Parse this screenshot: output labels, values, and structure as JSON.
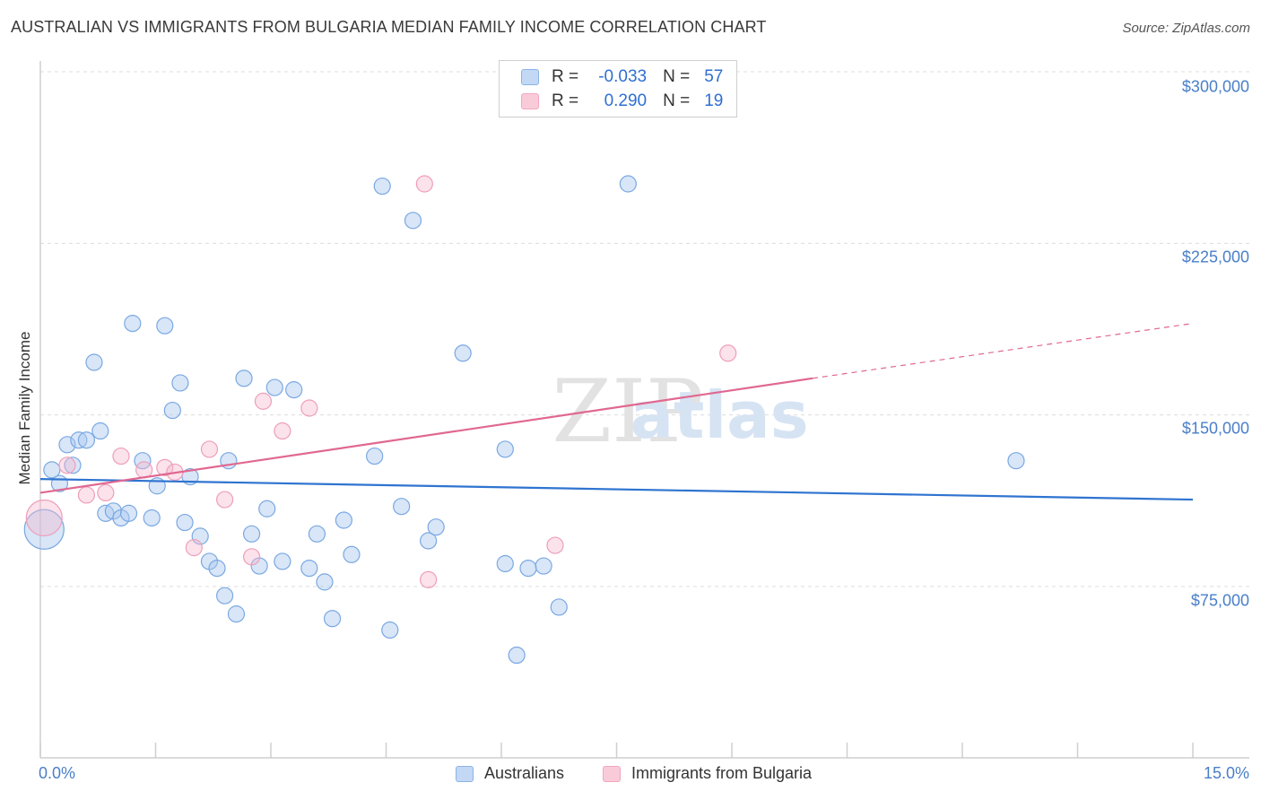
{
  "chart_data": {
    "type": "scatter",
    "title": "AUSTRALIAN VS IMMIGRANTS FROM BULGARIA MEDIAN FAMILY INCOME CORRELATION CHART",
    "source": "Source: ZipAtlas.com",
    "xlabel": "",
    "ylabel": "Median Family Income",
    "xlim": [
      0.0,
      15.0
    ],
    "ylim": [
      0,
      315000
    ],
    "x_tick_labels": [
      "0.0%",
      "15.0%"
    ],
    "y_ticks": [
      {
        "value": 75000,
        "label": "$75,000"
      },
      {
        "value": 150000,
        "label": "$150,000"
      },
      {
        "value": 225000,
        "label": "$225,000"
      },
      {
        "value": 300000,
        "label": "$300,000"
      }
    ],
    "grid": true,
    "legend": {
      "placement": "top-center",
      "r_label": "R =",
      "n_label": "N =",
      "entries": [
        {
          "name": "Australians",
          "r": "-0.033",
          "n": "57"
        },
        {
          "name": "Immigrants from Bulgaria",
          "r": "0.290",
          "n": "19"
        }
      ]
    },
    "series": [
      {
        "name": "Australians",
        "color": "#8ab4e8",
        "line_color": "#2f74d0",
        "trend": {
          "x": [
            0.0,
            15.0
          ],
          "y": [
            122000,
            113000
          ],
          "dashed_after": null
        },
        "points": [
          [
            0.15,
            126000
          ],
          [
            0.25,
            120000
          ],
          [
            0.35,
            137000
          ],
          [
            0.42,
            128000
          ],
          [
            0.5,
            139000
          ],
          [
            0.6,
            139000
          ],
          [
            0.7,
            173000
          ],
          [
            0.78,
            143000
          ],
          [
            0.85,
            107000
          ],
          [
            0.95,
            108000
          ],
          [
            1.05,
            105000
          ],
          [
            1.15,
            107000
          ],
          [
            1.2,
            190000
          ],
          [
            1.33,
            130000
          ],
          [
            1.45,
            105000
          ],
          [
            1.52,
            119000
          ],
          [
            1.62,
            189000
          ],
          [
            1.72,
            152000
          ],
          [
            1.82,
            164000
          ],
          [
            1.88,
            103000
          ],
          [
            1.95,
            123000
          ],
          [
            2.08,
            97000
          ],
          [
            2.2,
            86000
          ],
          [
            2.3,
            83000
          ],
          [
            2.4,
            71000
          ],
          [
            2.45,
            130000
          ],
          [
            2.55,
            63000
          ],
          [
            2.65,
            166000
          ],
          [
            2.75,
            98000
          ],
          [
            2.85,
            84000
          ],
          [
            2.95,
            109000
          ],
          [
            3.05,
            162000
          ],
          [
            3.15,
            86000
          ],
          [
            3.3,
            161000
          ],
          [
            3.5,
            83000
          ],
          [
            3.6,
            98000
          ],
          [
            3.7,
            77000
          ],
          [
            3.8,
            61000
          ],
          [
            3.95,
            104000
          ],
          [
            4.05,
            89000
          ],
          [
            4.35,
            132000
          ],
          [
            4.45,
            250000
          ],
          [
            4.55,
            56000
          ],
          [
            4.7,
            110000
          ],
          [
            4.85,
            235000
          ],
          [
            5.05,
            95000
          ],
          [
            5.15,
            101000
          ],
          [
            5.5,
            177000
          ],
          [
            6.05,
            135000
          ],
          [
            6.05,
            85000
          ],
          [
            6.2,
            45000
          ],
          [
            6.35,
            83000
          ],
          [
            6.55,
            84000
          ],
          [
            6.75,
            66000
          ],
          [
            7.65,
            251000
          ],
          [
            12.7,
            130000
          ],
          [
            0.05,
            100000
          ]
        ]
      },
      {
        "name": "Immigrants from Bulgaria",
        "color": "#f2a6bf",
        "line_color": "#e06890",
        "trend": {
          "x": [
            0.0,
            10.05
          ],
          "y": [
            116000,
            166000
          ],
          "dashed_to": [
            15.0,
            190000
          ]
        },
        "points": [
          [
            0.05,
            105000
          ],
          [
            0.35,
            128000
          ],
          [
            0.6,
            115000
          ],
          [
            0.85,
            116000
          ],
          [
            1.05,
            132000
          ],
          [
            1.35,
            126000
          ],
          [
            1.62,
            127000
          ],
          [
            1.75,
            125000
          ],
          [
            2.0,
            92000
          ],
          [
            2.2,
            135000
          ],
          [
            2.4,
            113000
          ],
          [
            2.75,
            88000
          ],
          [
            2.9,
            156000
          ],
          [
            3.15,
            143000
          ],
          [
            3.5,
            153000
          ],
          [
            5.05,
            78000
          ],
          [
            6.7,
            93000
          ],
          [
            8.95,
            177000
          ],
          [
            5.0,
            251000
          ]
        ]
      }
    ]
  }
}
